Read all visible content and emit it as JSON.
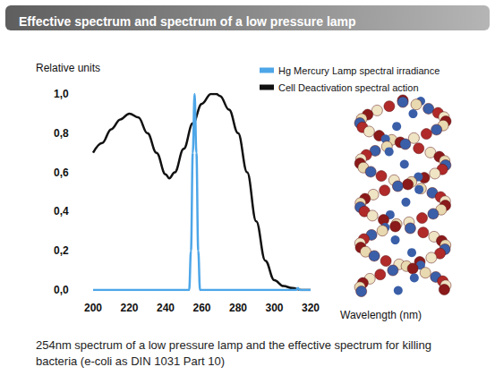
{
  "chart_data": {
    "type": "line",
    "title": "Effective spectrum and spectrum of a low pressure lamp",
    "y_label": "Relative units",
    "x_label": "Wavelength (nm)",
    "caption": "254nm spectrum of a low pressure lamp and the effective spectrum for killing bacteria (e-coli as DIN 1031 Part 10)",
    "series": [
      {
        "name": "Hg Mercury Lamp spectral irradiance",
        "color": "#4da6e8",
        "line_style": "solid",
        "x": [
          200,
          250,
          253,
          254,
          255,
          256,
          257,
          258,
          259,
          262,
          310,
          312,
          313,
          314,
          316,
          320
        ],
        "values": [
          0,
          0,
          0,
          0.2,
          0.7,
          1.0,
          0.7,
          0.2,
          0,
          0,
          0,
          0,
          0.01,
          0,
          0,
          0
        ]
      },
      {
        "name": "Cell Deactivation spectral action",
        "color": "#111111",
        "line_style": "solid",
        "x": [
          200,
          205,
          210,
          215,
          220,
          225,
          230,
          235,
          240,
          242,
          245,
          250,
          255,
          260,
          265,
          268,
          270,
          275,
          280,
          285,
          290,
          295,
          300,
          305,
          310,
          315,
          320
        ],
        "values": [
          0.7,
          0.75,
          0.82,
          0.87,
          0.9,
          0.88,
          0.8,
          0.7,
          0.59,
          0.57,
          0.6,
          0.72,
          0.85,
          0.95,
          1.0,
          1.0,
          0.99,
          0.92,
          0.8,
          0.6,
          0.35,
          0.15,
          0.05,
          0.02,
          0.01,
          0.0,
          0.0
        ]
      }
    ],
    "xlim": [
      200,
      320
    ],
    "xticks": [
      200,
      220,
      240,
      260,
      280,
      300,
      320
    ],
    "ylim": [
      0,
      1
    ],
    "yticks": [
      {
        "value": 0,
        "label": "0,0"
      },
      {
        "value": 0.2,
        "label": "0,2"
      },
      {
        "value": 0.4,
        "label": "0,4"
      },
      {
        "value": 0.6,
        "label": "0,6"
      },
      {
        "value": 0.8,
        "label": "0,8"
      },
      {
        "value": 1,
        "label": "1,0"
      }
    ],
    "grid": false,
    "legend": "top right"
  }
}
